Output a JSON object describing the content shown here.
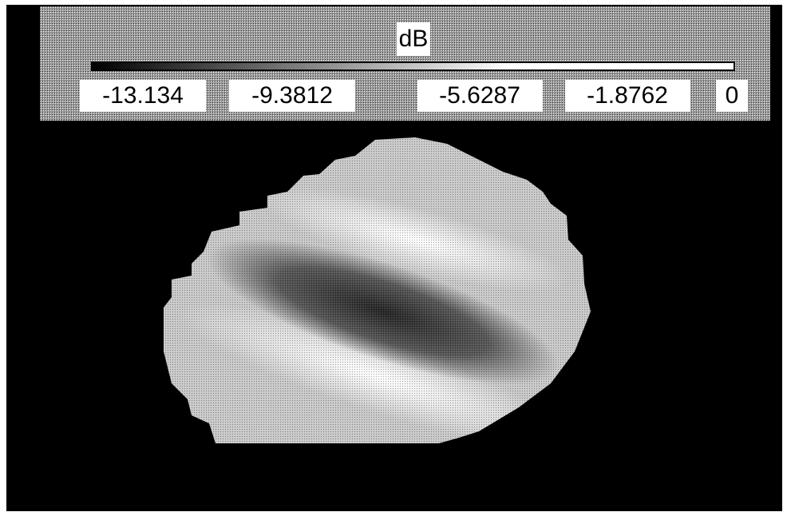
{
  "colorbar": {
    "title": "dB",
    "tick_labels": [
      "-13.134",
      "-9.3812",
      "-5.6287",
      "-1.8762",
      "0"
    ]
  }
}
